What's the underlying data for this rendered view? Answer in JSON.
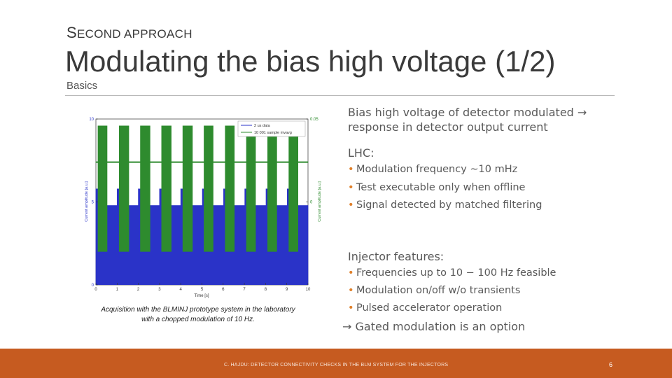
{
  "header": {
    "kicker_cap": "S",
    "kicker_rest": "ECOND APPROACH",
    "title": "Modulating the bias high voltage (1/2)",
    "subtitle": "Basics"
  },
  "caption": {
    "line1": "Acquisition with the BLMINJ prototype system in the laboratory",
    "line2": "with a chopped modulation of 10 Hz."
  },
  "bullets": {
    "b1": "Bias high voltage of detector modulated →",
    "b1b": "response in detector output current",
    "lhc": "LHC:",
    "lhc_items": [
      "Modulation frequency ~10 mHz",
      "Test executable only when offline",
      "Signal detected by matched filtering"
    ],
    "inj": "Injector features:",
    "inj_items": [
      "Frequencies up to 10 − 100 Hz feasible",
      "Modulation on/off w/o transients",
      "Pulsed accelerator operation"
    ],
    "gated": "→ Gated modulation is an option"
  },
  "footer": {
    "text": "C. HAJDU: DETECTOR CONNECTIVITY CHECKS IN THE BLM SYSTEM FOR THE INJECTORS",
    "page": "6"
  },
  "colors": {
    "accent": "#c65b20",
    "blue": "#2a33c8",
    "green": "#2e8b2e"
  },
  "chart_data": {
    "type": "line",
    "xlabel": "Time [s]",
    "ylabel_left": "Current amplitude [a.u.]",
    "ylabel_right": "Current amplitude [a.u.]",
    "x_ticks": [
      "0",
      "1",
      "2",
      "3",
      "4",
      "5",
      "6",
      "7",
      "8",
      "9",
      "10"
    ],
    "y_left_ticks": [
      "0",
      "5",
      "10"
    ],
    "y_right_ticks": [
      "0",
      "0.05"
    ],
    "xlim": [
      0,
      10
    ],
    "ylim_left": [
      0,
      10
    ],
    "ylim_right": [
      -0.05,
      0.05
    ],
    "series": [
      {
        "name": "2 us data",
        "color": "#2a33c8",
        "low": 0,
        "high": 4.8,
        "baseline_mod": 5.8
      },
      {
        "name": "10 001 sample mvavg",
        "color": "#2e8b2e",
        "high_band": [
          0.046,
          0.04
        ],
        "low_band": [
          -0.01,
          -0.03
        ],
        "mid": 0.024
      }
    ],
    "modulation_period": 1.0,
    "modulation_on_fraction": 0.4
  }
}
